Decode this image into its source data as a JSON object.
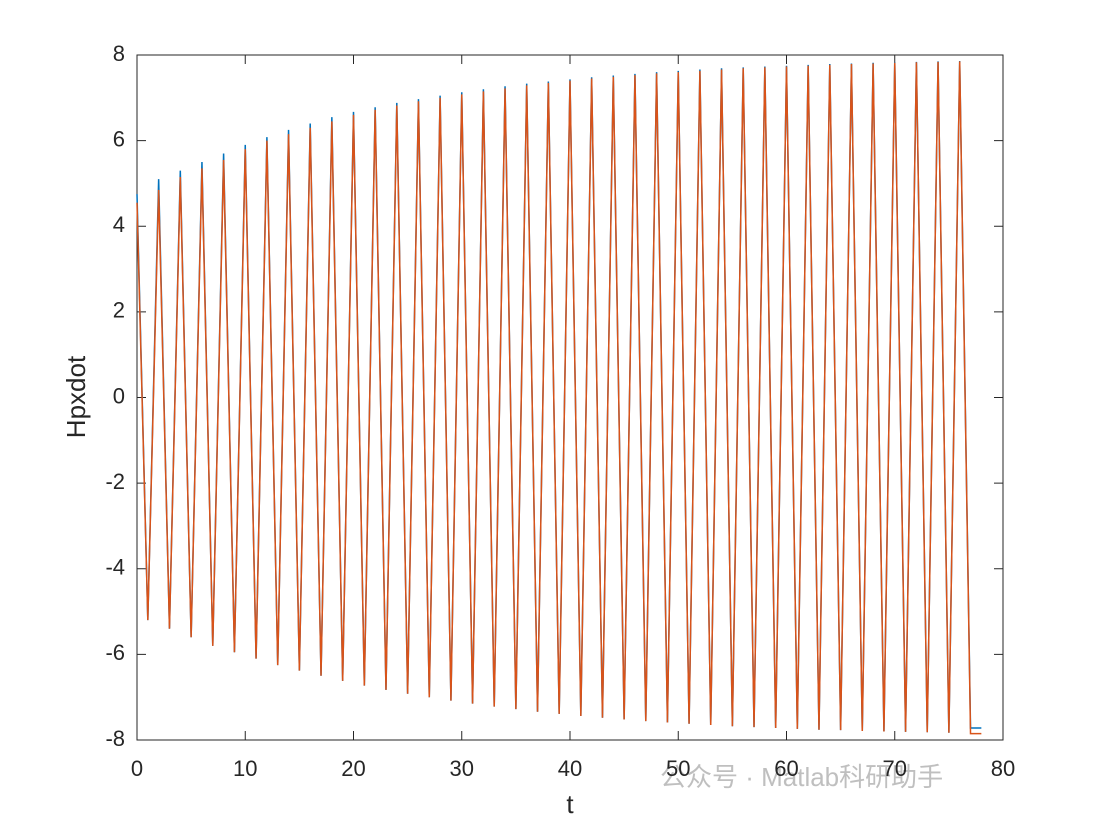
{
  "chart_data": {
    "type": "line",
    "xlabel": "t",
    "ylabel": "Hpxdot",
    "watermark": "公众号 · Matlab科研助手",
    "xlim": [
      0,
      80
    ],
    "xticks": [
      0,
      10,
      20,
      30,
      40,
      50,
      60,
      70,
      80
    ],
    "ylim": [
      -8,
      8
    ],
    "yticks": [
      -8,
      -6,
      -4,
      -2,
      0,
      2,
      4,
      6,
      8
    ],
    "grid": false,
    "x": [
      0,
      1,
      2,
      3,
      4,
      5,
      6,
      7,
      8,
      9,
      10,
      11,
      12,
      13,
      14,
      15,
      16,
      17,
      18,
      19,
      20,
      21,
      22,
      23,
      24,
      25,
      26,
      27,
      28,
      29,
      30,
      31,
      32,
      33,
      34,
      35,
      36,
      37,
      38,
      39,
      40,
      41,
      42,
      43,
      44,
      45,
      46,
      47,
      48,
      49,
      50,
      51,
      52,
      53,
      54,
      55,
      56,
      57,
      58,
      59,
      60,
      61,
      62,
      63,
      64,
      65,
      66,
      67,
      68,
      69,
      70,
      71,
      72,
      73,
      74,
      75,
      76,
      77,
      78
    ],
    "series": [
      {
        "color": "#0072bd",
        "values": [
          4.75,
          -5.2,
          5.1,
          -5.4,
          5.3,
          -5.6,
          5.5,
          -5.8,
          5.7,
          -5.95,
          5.9,
          -6.1,
          6.08,
          -6.25,
          6.25,
          -6.38,
          6.4,
          -6.5,
          6.55,
          -6.62,
          6.67,
          -6.73,
          6.78,
          -6.83,
          6.88,
          -6.92,
          6.97,
          -7.0,
          7.05,
          -7.08,
          7.13,
          -7.15,
          7.2,
          -7.22,
          7.27,
          -7.28,
          7.33,
          -7.34,
          7.38,
          -7.39,
          7.43,
          -7.44,
          7.48,
          -7.48,
          7.52,
          -7.52,
          7.56,
          -7.56,
          7.6,
          -7.59,
          7.63,
          -7.62,
          7.66,
          -7.65,
          7.69,
          -7.68,
          7.71,
          -7.7,
          7.73,
          -7.72,
          7.75,
          -7.74,
          7.77,
          -7.76,
          7.79,
          -7.77,
          7.8,
          -7.79,
          7.82,
          -7.8,
          7.83,
          -7.81,
          7.84,
          -7.82,
          7.85,
          -7.83,
          7.86,
          -7.72,
          -7.72
        ]
      },
      {
        "color": "#d95319",
        "values": [
          4.55,
          -5.2,
          4.85,
          -5.4,
          5.15,
          -5.6,
          5.35,
          -5.8,
          5.55,
          -5.95,
          5.8,
          -6.1,
          6.0,
          -6.25,
          6.15,
          -6.38,
          6.3,
          -6.5,
          6.45,
          -6.62,
          6.6,
          -6.73,
          6.72,
          -6.83,
          6.82,
          -6.92,
          6.92,
          -7.0,
          7.0,
          -7.08,
          7.08,
          -7.15,
          7.15,
          -7.22,
          7.22,
          -7.28,
          7.29,
          -7.34,
          7.35,
          -7.39,
          7.4,
          -7.44,
          7.45,
          -7.48,
          7.49,
          -7.52,
          7.53,
          -7.56,
          7.57,
          -7.59,
          7.6,
          -7.62,
          7.63,
          -7.65,
          7.66,
          -7.68,
          7.69,
          -7.7,
          7.71,
          -7.72,
          7.73,
          -7.74,
          7.75,
          -7.76,
          7.77,
          -7.77,
          7.79,
          -7.79,
          7.8,
          -7.8,
          7.82,
          -7.81,
          7.83,
          -7.82,
          7.84,
          -7.83,
          7.85,
          -7.85,
          -7.85
        ]
      }
    ]
  }
}
